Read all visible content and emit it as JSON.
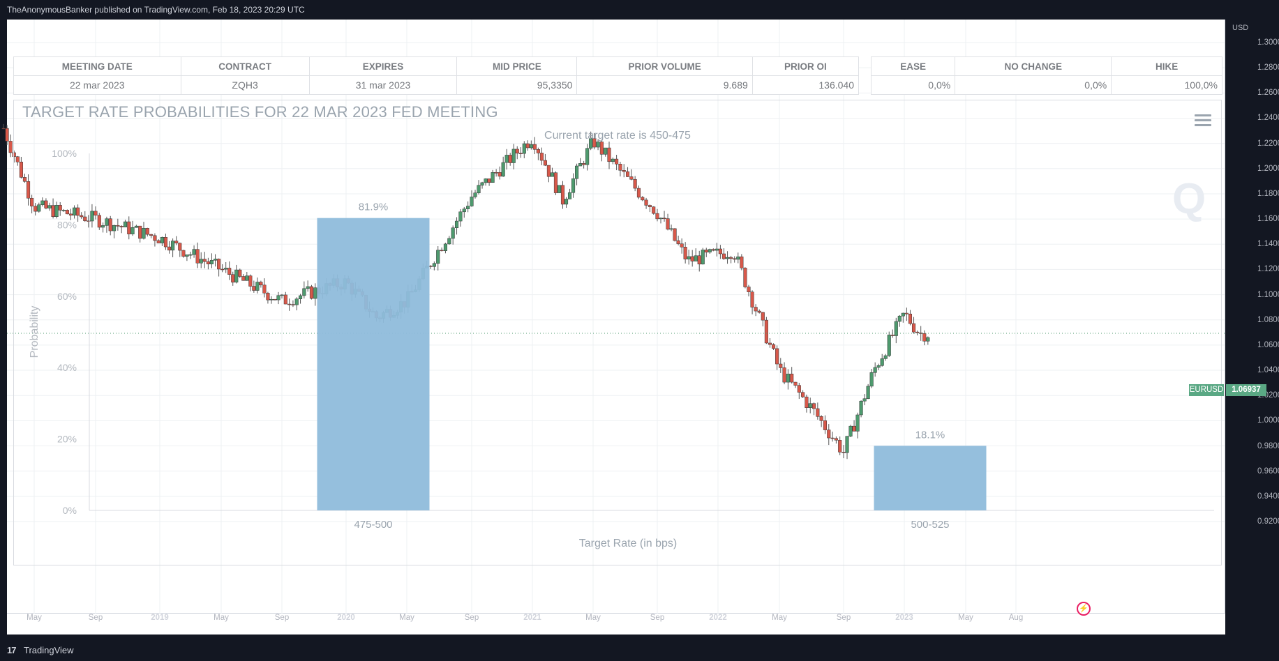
{
  "header": {
    "text": "TheAnonymousBanker published on TradingView.com, Feb 18, 2023 20:29 UTC"
  },
  "footer": {
    "logo": "17",
    "brand": "TradingView"
  },
  "cme_table": {
    "main_headers": [
      "MEETING DATE",
      "CONTRACT",
      "EXPIRES",
      "MID PRICE",
      "PRIOR VOLUME",
      "PRIOR OI"
    ],
    "main_values": [
      "22 mar 2023",
      "ZQH3",
      "31 mar 2023",
      "95,3350",
      "9.689",
      "136.040"
    ],
    "prob_headers": [
      "EASE",
      "NO CHANGE",
      "HIKE"
    ],
    "prob_values": [
      "0,0%",
      "0,0%",
      "100,0%"
    ]
  },
  "probability_chart": {
    "title": "TARGET RATE PROBABILITIES FOR 22 MAR 2023 FED MEETING",
    "subtitle": "Current target rate is 450-475",
    "menu_icon": "hamburger-menu-icon",
    "watermark": "Q",
    "bar_color": "#8fbcdb"
  },
  "price_axis": {
    "unit": "USD",
    "labels": [
      "1.30000",
      "1.28000",
      "1.26000",
      "1.24000",
      "1.22000",
      "1.20000",
      "1.18000",
      "1.16000",
      "1.14000",
      "1.12000",
      "1.10000",
      "1.08000",
      "1.06000",
      "1.04000",
      "1.02000",
      "1.00000",
      "0.98000",
      "0.96000",
      "0.94000",
      "0.92000"
    ],
    "symbol": "EURUSD",
    "last_price": "1.06937",
    "tag_color": "#5aa884"
  },
  "time_axis": {
    "labels": [
      {
        "text": "May",
        "bold": false
      },
      {
        "text": "Sep",
        "bold": false
      },
      {
        "text": "2019",
        "bold": true
      },
      {
        "text": "May",
        "bold": false
      },
      {
        "text": "Sep",
        "bold": false
      },
      {
        "text": "2020",
        "bold": true
      },
      {
        "text": "May",
        "bold": false
      },
      {
        "text": "Sep",
        "bold": false
      },
      {
        "text": "2021",
        "bold": true
      },
      {
        "text": "May",
        "bold": false
      },
      {
        "text": "Sep",
        "bold": false
      },
      {
        "text": "2022",
        "bold": true
      },
      {
        "text": "May",
        "bold": false
      },
      {
        "text": "Sep",
        "bold": false
      },
      {
        "text": "2023",
        "bold": true
      },
      {
        "text": "May",
        "bold": false
      },
      {
        "text": "Aug",
        "bold": false
      }
    ]
  },
  "colors": {
    "up": "#4e9a6e",
    "down": "#d8584a",
    "background": "#131722"
  },
  "chart_data": [
    {
      "type": "bar",
      "title": "TARGET RATE PROBABILITIES FOR 22 MAR 2023 FED MEETING",
      "subtitle": "Current target rate is 450-475",
      "xlabel": "Target Rate (in bps)",
      "ylabel": "Probability",
      "categories": [
        "475-500",
        "500-525"
      ],
      "values": [
        81.9,
        18.1
      ],
      "value_labels": [
        "81.9%",
        "18.1%"
      ],
      "ylim": [
        0,
        100
      ],
      "yticks": [
        "0%",
        "20%",
        "40%",
        "60%",
        "80%",
        "100%"
      ],
      "grid": false
    },
    {
      "type": "candlestick",
      "symbol": "EURUSD",
      "interval": "weekly",
      "ylim": [
        0.915,
        1.31
      ],
      "last_price": 1.06937,
      "x_range": [
        "2018-03",
        "2023-09"
      ],
      "key_points": [
        {
          "date": "2018-03",
          "close": 1.232
        },
        {
          "date": "2018-05",
          "close": 1.17
        },
        {
          "date": "2018-09",
          "close": 1.16
        },
        {
          "date": "2019-01",
          "close": 1.145
        },
        {
          "date": "2019-05",
          "close": 1.12
        },
        {
          "date": "2019-09",
          "close": 1.095
        },
        {
          "date": "2020-01",
          "close": 1.11
        },
        {
          "date": "2020-03",
          "close": 1.082
        },
        {
          "date": "2020-05",
          "close": 1.095
        },
        {
          "date": "2020-09",
          "close": 1.178
        },
        {
          "date": "2021-01",
          "close": 1.225
        },
        {
          "date": "2021-03",
          "close": 1.175
        },
        {
          "date": "2021-05",
          "close": 1.222
        },
        {
          "date": "2021-09",
          "close": 1.165
        },
        {
          "date": "2021-11",
          "close": 1.127
        },
        {
          "date": "2022-02",
          "close": 1.135
        },
        {
          "date": "2022-05",
          "close": 1.04
        },
        {
          "date": "2022-07",
          "close": 1.01
        },
        {
          "date": "2022-09",
          "close": 0.975
        },
        {
          "date": "2022-11",
          "close": 1.04
        },
        {
          "date": "2023-01",
          "close": 1.085
        },
        {
          "date": "2023-02",
          "close": 1.069
        }
      ]
    }
  ]
}
